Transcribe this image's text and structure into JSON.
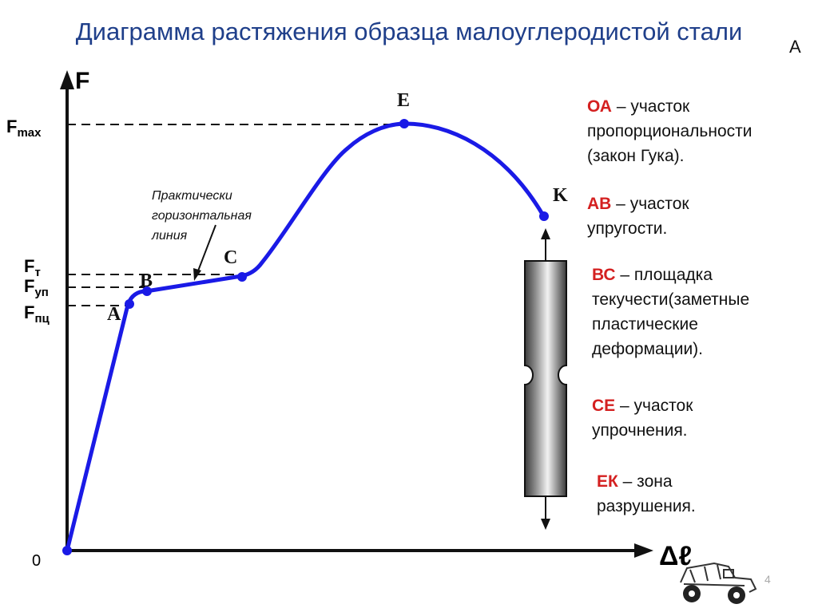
{
  "title": "Диаграмма растяжения образца малоуглеродистой стали",
  "corner_letter": "А",
  "axes": {
    "y_label": "F",
    "x_label": "Δℓ",
    "origin_label": "0"
  },
  "force_labels": {
    "fmax": {
      "base": "F",
      "sub": "max"
    },
    "ft": {
      "base": "F",
      "sub": "т"
    },
    "fup": {
      "base": "F",
      "sub": "уп"
    },
    "fpc": {
      "base": "F",
      "sub": "пц"
    }
  },
  "points": {
    "o": "0",
    "a": "A",
    "b": "B",
    "c": "C",
    "e": "E",
    "k": "K"
  },
  "annotation": {
    "line1": "Практически",
    "line2": "горизонтальная",
    "line3": "линия"
  },
  "descriptions": [
    {
      "key": "ОА",
      "text": " – участок",
      "lines": [
        "пропорциональности",
        "(закон Гука)."
      ]
    },
    {
      "key": "АВ",
      "text": " – участок",
      "lines": [
        "упругости."
      ]
    },
    {
      "key": "ВС",
      "text": " – площадка",
      "lines": [
        "текучести(заметные",
        "пластические",
        "деформации)."
      ]
    },
    {
      "key": "СЕ",
      "text": " – участок",
      "lines": [
        "упрочнения."
      ]
    },
    {
      "key": "ЕК",
      "text": " – зона",
      "lines": [
        "разрушения."
      ]
    }
  ],
  "page_number": "4",
  "colors": {
    "curve": "#1a1ae6",
    "title": "#1f3f8a",
    "key": "#d42020"
  }
}
